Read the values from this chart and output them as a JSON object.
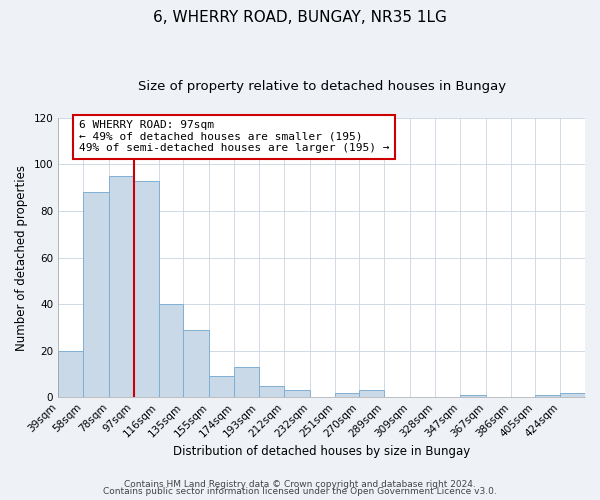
{
  "title": "6, WHERRY ROAD, BUNGAY, NR35 1LG",
  "subtitle": "Size of property relative to detached houses in Bungay",
  "xlabel": "Distribution of detached houses by size in Bungay",
  "ylabel": "Number of detached properties",
  "bar_labels": [
    "39sqm",
    "58sqm",
    "78sqm",
    "97sqm",
    "116sqm",
    "135sqm",
    "155sqm",
    "174sqm",
    "193sqm",
    "212sqm",
    "232sqm",
    "251sqm",
    "270sqm",
    "289sqm",
    "309sqm",
    "328sqm",
    "347sqm",
    "367sqm",
    "386sqm",
    "405sqm",
    "424sqm"
  ],
  "bar_values": [
    20,
    88,
    95,
    93,
    40,
    29,
    9,
    13,
    5,
    3,
    0,
    2,
    3,
    0,
    0,
    0,
    1,
    0,
    0,
    1,
    2
  ],
  "bin_edges": [
    39,
    58,
    78,
    97,
    116,
    135,
    155,
    174,
    193,
    212,
    232,
    251,
    270,
    289,
    309,
    328,
    347,
    367,
    386,
    405,
    424,
    443
  ],
  "bar_color": "#c9d9e8",
  "bar_edge_color": "#7fafd4",
  "vline_x": 97,
  "vline_color": "#cc0000",
  "annotation_text": "6 WHERRY ROAD: 97sqm\n← 49% of detached houses are smaller (195)\n49% of semi-detached houses are larger (195) →",
  "annotation_box_color": "#ffffff",
  "annotation_box_edge_color": "#cc0000",
  "ylim": [
    0,
    120
  ],
  "yticks": [
    0,
    20,
    40,
    60,
    80,
    100,
    120
  ],
  "footer_line1": "Contains HM Land Registry data © Crown copyright and database right 2024.",
  "footer_line2": "Contains public sector information licensed under the Open Government Licence v3.0.",
  "bg_color": "#eef2f7",
  "plot_bg_color": "#ffffff",
  "grid_color": "#c8d4e0",
  "title_fontsize": 11,
  "subtitle_fontsize": 9.5,
  "label_fontsize": 8.5,
  "tick_fontsize": 7.5,
  "annotation_fontsize": 8,
  "footer_fontsize": 6.5
}
